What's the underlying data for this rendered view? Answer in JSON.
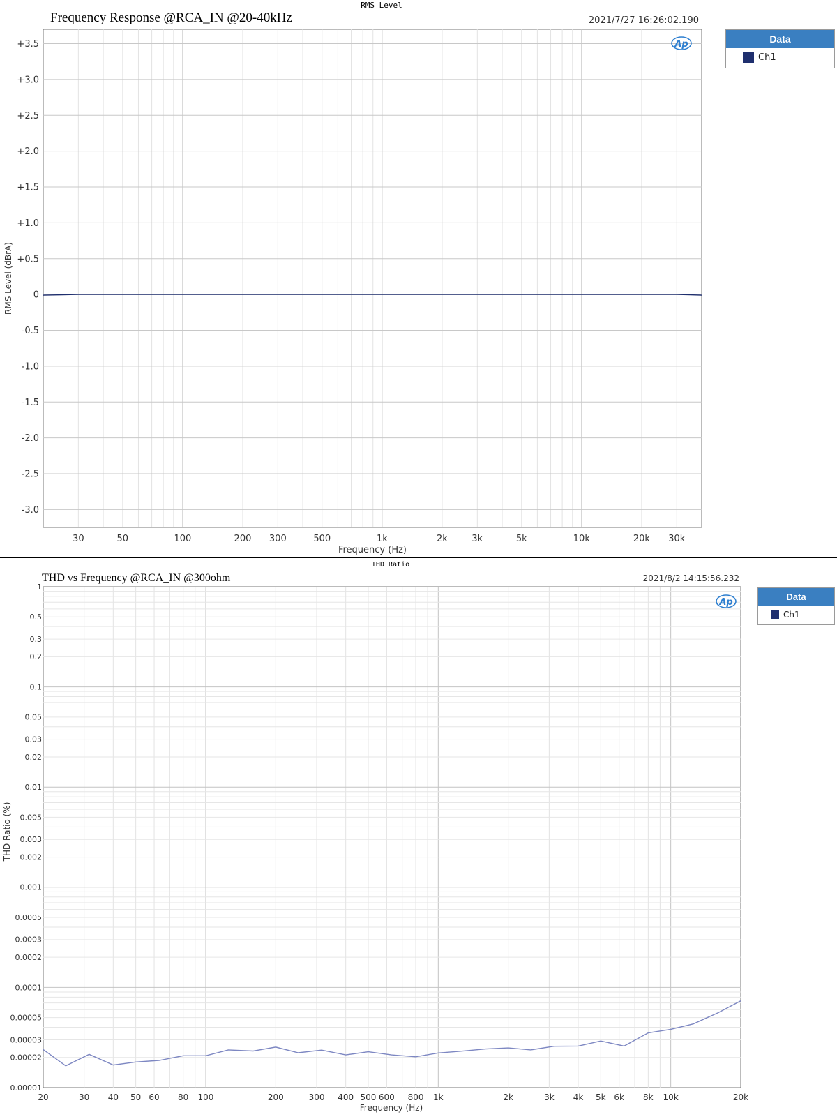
{
  "chart_data": [
    {
      "type": "line",
      "header": "RMS Level",
      "title": "Frequency Response @RCA_IN @20-40kHz",
      "timestamp": "2021/7/27 16:26:02.190",
      "xlabel": "Frequency (Hz)",
      "ylabel": "RMS Level (dBrA)",
      "x_scale": "log",
      "xlim": [
        20,
        40000
      ],
      "ylim": [
        -3.25,
        3.7
      ],
      "xticks": [
        30,
        50,
        100,
        200,
        300,
        500,
        1000,
        2000,
        3000,
        5000,
        10000,
        20000,
        30000
      ],
      "xtick_labels": [
        "30",
        "50",
        "100",
        "200",
        "300",
        "500",
        "1k",
        "2k",
        "3k",
        "5k",
        "10k",
        "20k",
        "30k"
      ],
      "yticks": [
        3.5,
        3.0,
        2.5,
        2.0,
        1.5,
        1.0,
        0.5,
        0,
        -0.5,
        -1.0,
        -1.5,
        -2.0,
        -2.5,
        -3.0
      ],
      "ytick_labels": [
        "+3.5",
        "+3.0",
        "+2.5",
        "+2.0",
        "+1.5",
        "+1.0",
        "+0.5",
        "0",
        "-0.5",
        "-1.0",
        "-1.5",
        "-2.0",
        "-2.5",
        "-3.0"
      ],
      "grid": true,
      "legend_title": "Data",
      "legend_position": "right",
      "logo": "Ap",
      "series": [
        {
          "name": "Ch1",
          "color": "#1f2f6e",
          "x": [
            20,
            25,
            30,
            40,
            100,
            1000,
            10000,
            30000,
            35000,
            40000
          ],
          "y": [
            -0.01,
            -0.005,
            0.0,
            0.0,
            0.0,
            0.0,
            0.0,
            0.0,
            -0.005,
            -0.01
          ]
        }
      ]
    },
    {
      "type": "line",
      "header": "THD Ratio",
      "title": "THD vs Frequency @RCA_IN @300ohm",
      "timestamp": "2021/8/2 14:15:56.232",
      "xlabel": "Frequency (Hz)",
      "ylabel": "THD Ratio (%)",
      "x_scale": "log",
      "y_scale": "log",
      "xlim": [
        20,
        20000
      ],
      "ylim": [
        1e-05,
        1
      ],
      "xticks": [
        20,
        30,
        40,
        50,
        60,
        80,
        100,
        200,
        300,
        400,
        500,
        600,
        800,
        1000,
        2000,
        3000,
        4000,
        5000,
        6000,
        8000,
        10000,
        20000
      ],
      "xtick_labels": [
        "20",
        "30",
        "40",
        "50",
        "60",
        "80",
        "100",
        "200",
        "300",
        "400",
        "500",
        "600",
        "800",
        "1k",
        "2k",
        "3k",
        "4k",
        "5k",
        "6k",
        "8k",
        "10k",
        "20k"
      ],
      "yticks": [
        1,
        0.5,
        0.3,
        0.2,
        0.1,
        0.05,
        0.03,
        0.02,
        0.01,
        0.005,
        0.003,
        0.002,
        0.001,
        0.0005,
        0.0003,
        0.0002,
        0.0001,
        5e-05,
        3e-05,
        2e-05,
        1e-05
      ],
      "ytick_labels": [
        "1",
        "0.5",
        "0.3",
        "0.2",
        "0.1",
        "0.05",
        "0.03",
        "0.02",
        "0.01",
        "0.005",
        "0.003",
        "0.002",
        "0.001",
        "0.0005",
        "0.0003",
        "0.0002",
        "0.0001",
        "0.00005",
        "0.00003",
        "0.00002",
        "0.00001"
      ],
      "grid": true,
      "legend_title": "Data",
      "legend_position": "right",
      "logo": "Ap",
      "series": [
        {
          "name": "Ch1",
          "color": "#7d87c2",
          "x": [
            20,
            25,
            31.5,
            40,
            50,
            63,
            80,
            100,
            125,
            160,
            200,
            250,
            315,
            400,
            500,
            630,
            800,
            1000,
            1250,
            1600,
            2000,
            2500,
            3150,
            4000,
            5000,
            6300,
            8000,
            10000,
            12500,
            16000,
            20000
          ],
          "y": [
            2.4e-05,
            1.65e-05,
            2.15e-05,
            1.68e-05,
            1.8e-05,
            1.87e-05,
            2.08e-05,
            2.08e-05,
            2.38e-05,
            2.32e-05,
            2.54e-05,
            2.23e-05,
            2.37e-05,
            2.12e-05,
            2.28e-05,
            2.12e-05,
            2.03e-05,
            2.22e-05,
            2.31e-05,
            2.43e-05,
            2.49e-05,
            2.38e-05,
            2.59e-05,
            2.6e-05,
            2.92e-05,
            2.6e-05,
            3.52e-05,
            3.82e-05,
            4.32e-05,
            5.6e-05,
            7.35e-05
          ]
        }
      ]
    }
  ]
}
